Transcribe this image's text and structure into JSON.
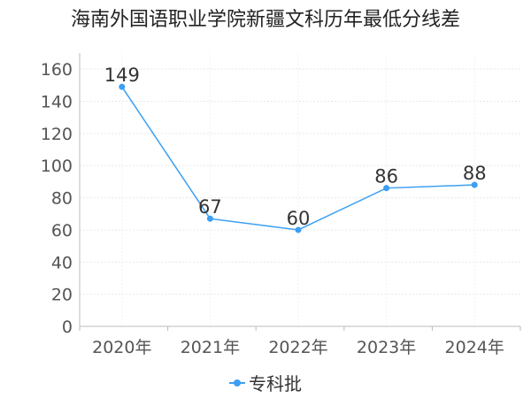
{
  "chart_data": {
    "type": "line",
    "title": "海南外国语职业学院新疆文科历年最低分线差",
    "categories": [
      "2020年",
      "2021年",
      "2022年",
      "2023年",
      "2024年"
    ],
    "series": [
      {
        "name": "专科批",
        "values": [
          149,
          67,
          60,
          86,
          88
        ]
      }
    ],
    "ylim": [
      0,
      170
    ],
    "yticks": [
      0,
      20,
      40,
      60,
      80,
      100,
      120,
      140,
      160
    ],
    "grid": true,
    "legend": "bottom-center",
    "colors": {
      "series": "#3b9ff3",
      "grid": "#e8e8e8",
      "axis": "#bbbbbb"
    }
  }
}
